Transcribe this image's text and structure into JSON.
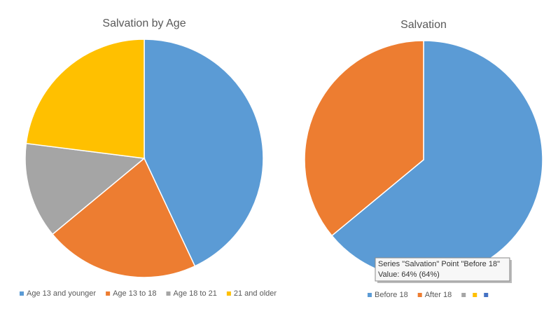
{
  "chart_data": [
    {
      "type": "pie",
      "title": "Salvation by Age",
      "categories": [
        "Age 13 and younger",
        "Age 13 to 18",
        "Age 18 to 21",
        "21 and older"
      ],
      "values": [
        43,
        21,
        13,
        23
      ],
      "colors": [
        "#5b9bd5",
        "#ed7d31",
        "#a5a5a5",
        "#ffc000"
      ],
      "legend": "bottom"
    },
    {
      "type": "pie",
      "title": "Salvation",
      "categories": [
        "Before 18",
        "After 18",
        null,
        null,
        null
      ],
      "values": [
        64,
        36,
        null,
        null,
        null
      ],
      "colors": [
        "#5b9bd5",
        "#ed7d31",
        "#a5a5a5",
        "#ffc000",
        "#4472c4"
      ],
      "legend": "bottom",
      "tooltip": [
        "Series \"Salvation\" Point \"Before 18\"",
        "Value: 64% (64%)"
      ]
    }
  ]
}
